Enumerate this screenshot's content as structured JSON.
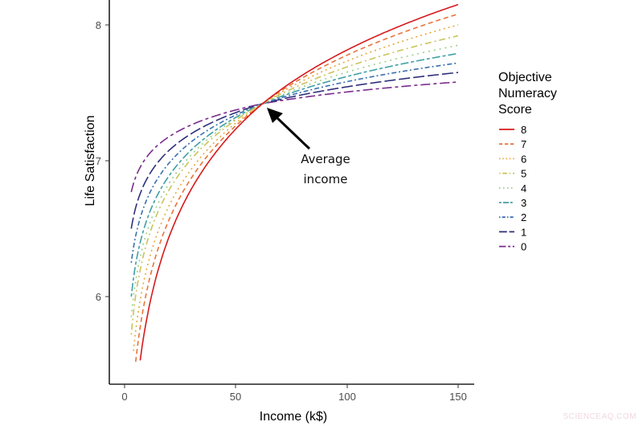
{
  "chart_data": {
    "type": "line",
    "title": "",
    "xlabel": "Income (k$)",
    "ylabel": "Life Satisfaction",
    "xlim": [
      -5,
      157
    ],
    "ylim": [
      5.45,
      8.18
    ],
    "xticks": [
      0,
      50,
      100,
      150
    ],
    "yticks": [
      6,
      7,
      8
    ],
    "grid": false,
    "legend_position": "right",
    "legend_title": "Objective Numeracy Score",
    "crossing_point": {
      "x": 62,
      "y": 7.42
    },
    "annotation": {
      "text_lines": [
        "Average",
        "income"
      ],
      "points_to": {
        "x": 62,
        "y": 7.42
      }
    },
    "series": [
      {
        "name": "8",
        "color": "#d7191c",
        "dash": "solid",
        "x_start": 7,
        "y_start": 5.53,
        "y_end": 8.15
      },
      {
        "name": "7",
        "color": "#e8743b",
        "dash": "6,4",
        "x_start": 5,
        "y_start": 5.52,
        "y_end": 8.08
      },
      {
        "name": "6",
        "color": "#e6a93c",
        "dash": "2,4",
        "x_start": 4,
        "y_start": 5.6,
        "y_end": 8.0
      },
      {
        "name": "5",
        "color": "#c9c45a",
        "dash": "2,4,8,4",
        "x_start": 3,
        "y_start": 5.72,
        "y_end": 7.92
      },
      {
        "name": "4",
        "color": "#9ccf8a",
        "dash": "2,5",
        "x_start": 3,
        "y_start": 5.85,
        "y_end": 7.85
      },
      {
        "name": "3",
        "color": "#3f9fa6",
        "dash": "4,3,10,3",
        "x_start": 3,
        "y_start": 6.0,
        "y_end": 7.79
      },
      {
        "name": "2",
        "color": "#3a6fb0",
        "dash": "2,3,6,3",
        "x_start": 3,
        "y_start": 6.25,
        "y_end": 7.72
      },
      {
        "name": "1",
        "color": "#2e2f7a",
        "dash": "14,4",
        "x_start": 3,
        "y_start": 6.5,
        "y_end": 7.65
      },
      {
        "name": "0",
        "color": "#7a2a8c",
        "dash": "12,4,4,4",
        "x_start": 3,
        "y_start": 6.77,
        "y_end": 7.58
      }
    ]
  },
  "axes": {
    "x_ticks": [
      "0",
      "50",
      "100",
      "150"
    ],
    "y_ticks": [
      "6",
      "7",
      "8"
    ],
    "x_title": "Income (k$)",
    "y_title": "Life Satisfaction"
  },
  "legend": {
    "title_lines": [
      "Objective",
      "Numeracy",
      "Score"
    ],
    "items": [
      "8",
      "7",
      "6",
      "5",
      "4",
      "3",
      "2",
      "1",
      "0"
    ]
  },
  "annotation": {
    "line1": "Average",
    "line2": "income"
  },
  "watermark": "SCIENCEAQ.COM"
}
